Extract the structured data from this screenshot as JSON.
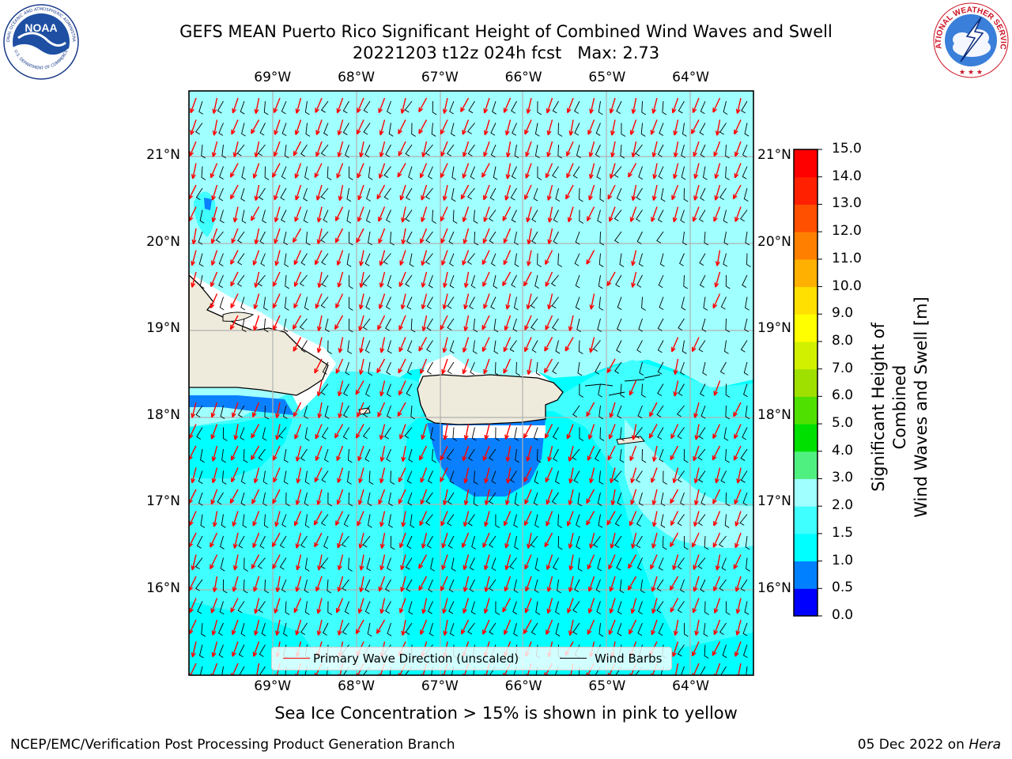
{
  "title": {
    "line1": "GEFS MEAN Puerto Rico Significant Height of Combined Wind Waves and Swell",
    "line2": "20221203 t12z 024h fcst   Max: 2.73"
  },
  "logos": {
    "noaa_text": "NOAA",
    "noaa_ring_top": "NATIONAL OCEANIC AND ATMOSPHERIC ADMINISTRATION",
    "noaa_ring_bottom": "U.S. DEPARTMENT OF COMMERCE",
    "nws_ring_top": "NATIONAL WEATHER SERVICE"
  },
  "map": {
    "lon_ticks": [
      "69°W",
      "68°W",
      "67°W",
      "66°W",
      "65°W",
      "64°W"
    ],
    "lat_ticks": [
      "21°N",
      "20°N",
      "19°N",
      "18°N",
      "17°N",
      "16°N"
    ],
    "lon_values": [
      -69,
      -68,
      -67,
      -66,
      -65,
      -64
    ],
    "lat_values": [
      21,
      20,
      19,
      18,
      17,
      16
    ],
    "lon_range": [
      -70.0,
      -63.25
    ],
    "lat_range": [
      15.0,
      21.75
    ],
    "grid": true,
    "ocean_color": "#00ffff",
    "land_color": "#efebdc"
  },
  "legend": {
    "wave_label": "Primary Wave Direction (unscaled)",
    "barb_label": "Wind Barbs",
    "wave_color": "#ff0000",
    "barb_color": "#000000"
  },
  "colorbar": {
    "label_line1": "Significant Height of Combined",
    "label_line2": "Wind Waves and Swell [m]",
    "ticks": [
      "0.0",
      "0.5",
      "1.0",
      "1.5",
      "2.0",
      "3.0",
      "4.0",
      "5.0",
      "6.0",
      "7.0",
      "8.0",
      "9.0",
      "10.0",
      "11.0",
      "12.0",
      "13.0",
      "14.0",
      "15.0"
    ],
    "colors": [
      "#0000ff",
      "#0080ff",
      "#00ffff",
      "#40ffff",
      "#a0ffff",
      "#50f080",
      "#00e000",
      "#50e000",
      "#a0e000",
      "#d0f000",
      "#ffff00",
      "#ffe000",
      "#ffb000",
      "#ff8000",
      "#ff5000",
      "#ff2000",
      "#ff0000"
    ]
  },
  "note": "Sea Ice Concentration > 15% is shown in pink to yellow",
  "footer": {
    "left": "NCEP/EMC/Verification Post Processing Product Generation Branch",
    "right_prefix": "05 Dec 2022 on ",
    "right_host": "Hera"
  }
}
